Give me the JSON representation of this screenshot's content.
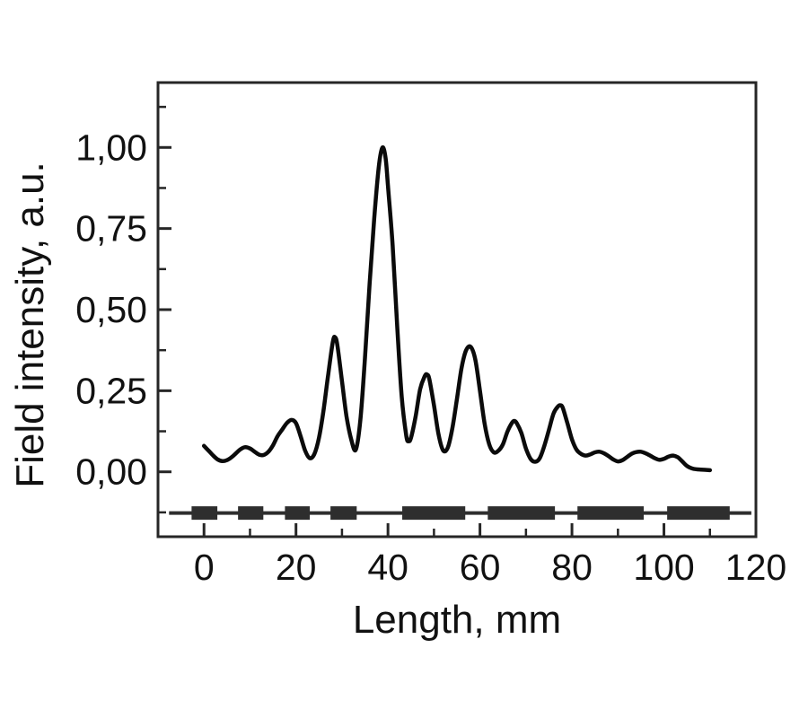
{
  "figure": {
    "background": "#ffffff"
  },
  "chart_data": {
    "type": "line",
    "title": "",
    "xlabel": "Length, mm",
    "ylabel": "Field intensity, a.u.",
    "grid": false,
    "legend": null,
    "x_axis": {
      "min": -10,
      "max": 120,
      "major_ticks": [
        0,
        20,
        40,
        60,
        80,
        100,
        120
      ],
      "tick_labels": [
        "0",
        "20",
        "40",
        "60",
        "80",
        "100",
        "120"
      ],
      "minor_ticks": [
        10,
        30,
        50,
        70,
        90,
        110
      ]
    },
    "y_axis": {
      "min": -0.2,
      "max": 1.2,
      "major_ticks": [
        0,
        0.25,
        0.5,
        0.75,
        1.0
      ],
      "tick_labels": [
        "0,00",
        "0,25",
        "0,50",
        "0,75",
        "1,00"
      ],
      "minor_ticks": [
        -0.125,
        0.125,
        0.375,
        0.625,
        0.875,
        1.125
      ]
    },
    "series": [
      {
        "name": "field intensity",
        "x": [
          0,
          1,
          2,
          3,
          4,
          5,
          6,
          7,
          8,
          9,
          10,
          11,
          12,
          13,
          14,
          15,
          16,
          17,
          18,
          19,
          20,
          21,
          22,
          23,
          24,
          25,
          26,
          27,
          28,
          28.5,
          29,
          30,
          31,
          32,
          33,
          34,
          35,
          36,
          37,
          38,
          38.8,
          39.5,
          40,
          41,
          42,
          43,
          44,
          44.5,
          45,
          46,
          47,
          48,
          48.5,
          49,
          50,
          51,
          52,
          53,
          54,
          55,
          56,
          57,
          58,
          59,
          60,
          61,
          62,
          63,
          64,
          65,
          66,
          67,
          67.5,
          68,
          69,
          70,
          71,
          72,
          73,
          74,
          75,
          76,
          77,
          77.5,
          78,
          79,
          80,
          81,
          82,
          83,
          84,
          85,
          86,
          87,
          88,
          89,
          90,
          91,
          92,
          93,
          94,
          95,
          96,
          97,
          98,
          99,
          100,
          101,
          102,
          103,
          104,
          105,
          106,
          107,
          108,
          109,
          110
        ],
        "y": [
          0.08,
          0.065,
          0.05,
          0.038,
          0.033,
          0.036,
          0.045,
          0.058,
          0.07,
          0.076,
          0.072,
          0.062,
          0.053,
          0.052,
          0.062,
          0.082,
          0.11,
          0.13,
          0.15,
          0.16,
          0.15,
          0.11,
          0.065,
          0.042,
          0.055,
          0.105,
          0.19,
          0.3,
          0.4,
          0.415,
          0.39,
          0.28,
          0.17,
          0.1,
          0.068,
          0.16,
          0.35,
          0.58,
          0.78,
          0.94,
          1.0,
          0.965,
          0.88,
          0.7,
          0.45,
          0.23,
          0.11,
          0.095,
          0.105,
          0.17,
          0.255,
          0.295,
          0.3,
          0.285,
          0.205,
          0.115,
          0.066,
          0.075,
          0.135,
          0.225,
          0.32,
          0.375,
          0.385,
          0.345,
          0.25,
          0.15,
          0.085,
          0.06,
          0.065,
          0.085,
          0.125,
          0.152,
          0.157,
          0.15,
          0.12,
          0.072,
          0.04,
          0.031,
          0.042,
          0.08,
          0.13,
          0.18,
          0.202,
          0.205,
          0.198,
          0.15,
          0.1,
          0.068,
          0.055,
          0.05,
          0.054,
          0.06,
          0.062,
          0.057,
          0.048,
          0.038,
          0.032,
          0.036,
          0.046,
          0.056,
          0.061,
          0.062,
          0.057,
          0.05,
          0.042,
          0.037,
          0.04,
          0.047,
          0.05,
          0.045,
          0.032,
          0.018,
          0.011,
          0.008,
          0.007,
          0.006,
          0.005
        ]
      }
    ],
    "schematic": {
      "description": "segmented element pattern drawn under the curve",
      "baseline_y": -0.127,
      "baseline_x_start": -7.6,
      "baseline_x_end": 119,
      "bars": [
        {
          "x0": -2.7,
          "x1": 2.9,
          "kind": "narrow"
        },
        {
          "x0": 7.4,
          "x1": 12.9,
          "kind": "narrow"
        },
        {
          "x0": 17.6,
          "x1": 23.0,
          "kind": "narrow"
        },
        {
          "x0": 27.5,
          "x1": 33.2,
          "kind": "narrow"
        },
        {
          "x0": 43.1,
          "x1": 56.8,
          "kind": "wide"
        },
        {
          "x0": 61.7,
          "x1": 76.3,
          "kind": "wide"
        },
        {
          "x0": 81.2,
          "x1": 95.6,
          "kind": "wide"
        },
        {
          "x0": 100.7,
          "x1": 114.3,
          "kind": "wide"
        }
      ]
    },
    "colors": {
      "curve": "#0b0b0b",
      "frame": "#262626",
      "schematic": "#2e2e2e",
      "text": "#111111",
      "background": "#ffffff"
    }
  }
}
